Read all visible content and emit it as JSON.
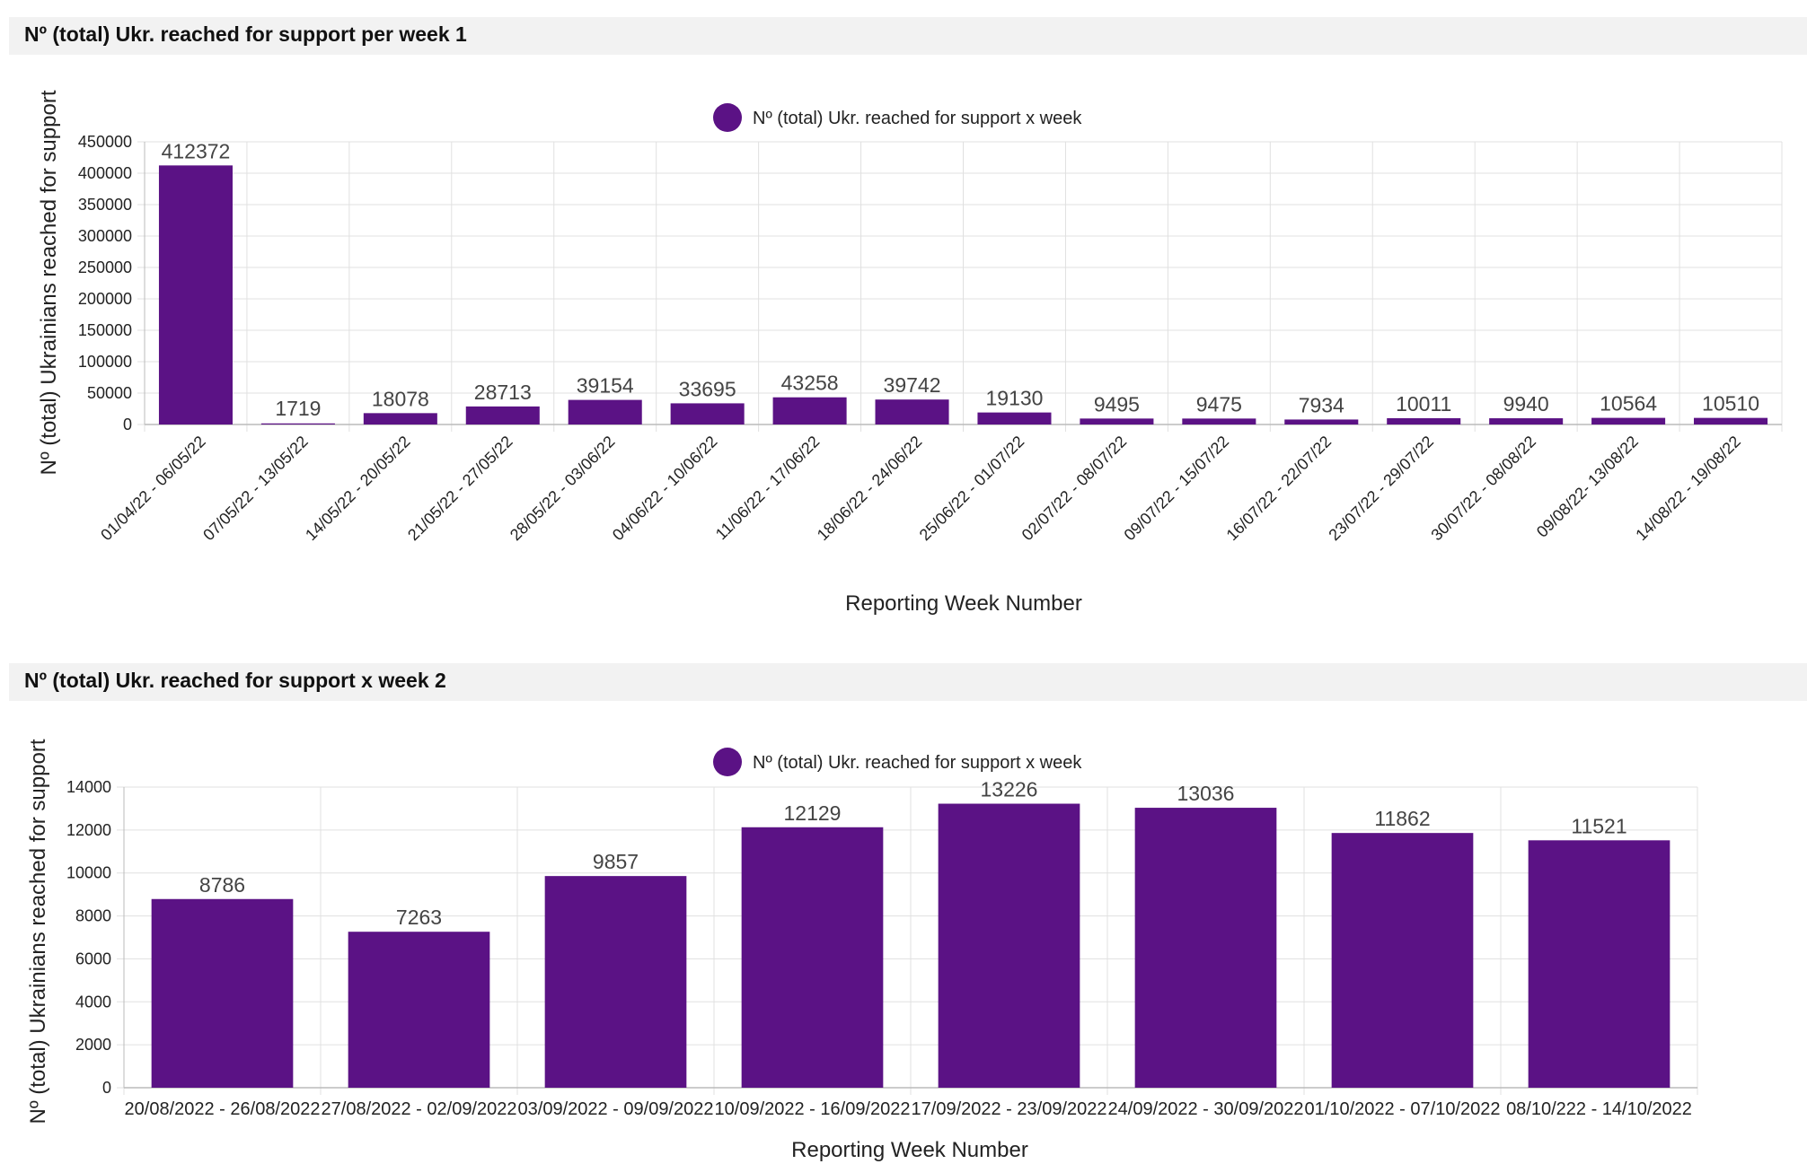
{
  "panels": [
    {
      "title": "Nº (total) Ukr. reached for support per week 1"
    },
    {
      "title": "Nº (total) Ukr. reached for support x week 2"
    }
  ],
  "colors": {
    "bar": "#5b1285",
    "grid": "#e0e0e0",
    "axis": "#bbbbbb",
    "text": "#222222",
    "value_text": "#444444"
  },
  "chart_data": [
    {
      "type": "bar",
      "title": "Nº (total) Ukr. reached for support per week 1",
      "legend": "Nº (total) Ukr. reached for support x week",
      "xlabel": "Reporting Week Number",
      "ylabel": "Nº (total) Ukrainians reached for support",
      "ylim": [
        0,
        450000
      ],
      "yticks": [
        0,
        50000,
        100000,
        150000,
        200000,
        250000,
        300000,
        350000,
        400000,
        450000
      ],
      "categories": [
        "01/04/22 - 06/05/22",
        "07/05/22 - 13/05/22",
        "14/05/22 - 20/05/22",
        "21/05/22 - 27/05/22",
        "28/05/22 - 03/06/22",
        "04/06/22 - 10/06/22",
        "11/06/22 - 17/06/22",
        "18/06/22 - 24/06/22",
        "25/06/22 - 01/07/22",
        "02/07/22 - 08/07/22",
        "09/07/22 - 15/07/22",
        "16/07/22 - 22/07/22",
        "23/07/22 - 29/07/22",
        "30/07/22 - 08/08/22",
        "09/08/22- 13/08/22",
        "14/08/22 - 19/08/22"
      ],
      "values": [
        412372,
        1719,
        18078,
        28713,
        39154,
        33695,
        43258,
        39742,
        19130,
        9495,
        9475,
        7934,
        10011,
        9940,
        10564,
        10510
      ]
    },
    {
      "type": "bar",
      "title": "Nº (total) Ukr. reached for support x week 2",
      "legend": "Nº (total) Ukr. reached for support x week",
      "xlabel": "Reporting Week Number",
      "ylabel": "Nº (total) Ukrainians reached for support",
      "ylim": [
        0,
        14000
      ],
      "yticks": [
        0,
        2000,
        4000,
        6000,
        8000,
        10000,
        12000,
        14000
      ],
      "categories": [
        "20/08/2022 - 26/08/2022",
        "27/08/2022 - 02/09/2022",
        "03/09/2022 - 09/09/2022",
        "10/09/2022 - 16/09/2022",
        "17/09/2022 - 23/09/2022",
        "24/09/2022 - 30/09/2022",
        "01/10/2022 - 07/10/2022",
        "08/10/222 - 14/10/2022"
      ],
      "values": [
        8786,
        7263,
        9857,
        12129,
        13226,
        13036,
        11862,
        11521
      ]
    }
  ]
}
